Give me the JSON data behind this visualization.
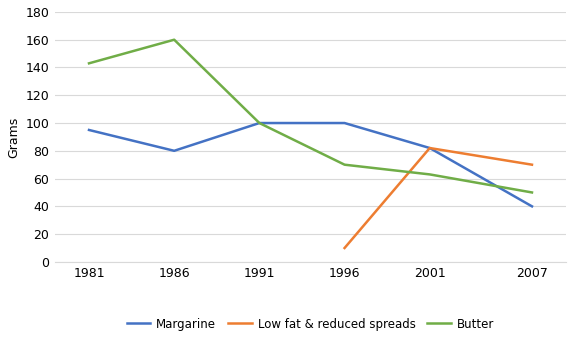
{
  "years": [
    1981,
    1986,
    1991,
    1996,
    2001,
    2007
  ],
  "margarine": [
    95,
    80,
    100,
    100,
    82,
    40
  ],
  "low_fat": [
    null,
    null,
    null,
    10,
    82,
    70
  ],
  "butter": [
    143,
    160,
    100,
    70,
    63,
    50
  ],
  "margarine_color": "#4472C4",
  "low_fat_color": "#ED7D31",
  "butter_color": "#70AD47",
  "ylabel": "Grams",
  "ylim": [
    0,
    180
  ],
  "yticks": [
    0,
    20,
    40,
    60,
    80,
    100,
    120,
    140,
    160,
    180
  ],
  "xtick_labels": [
    "1981",
    "1986",
    "1991",
    "1996",
    "2001",
    "2007"
  ],
  "legend_labels": [
    "Margarine",
    "Low fat & reduced spreads",
    "Butter"
  ],
  "line_width": 1.8,
  "background_color": "#ffffff",
  "grid_color": "#d9d9d9"
}
